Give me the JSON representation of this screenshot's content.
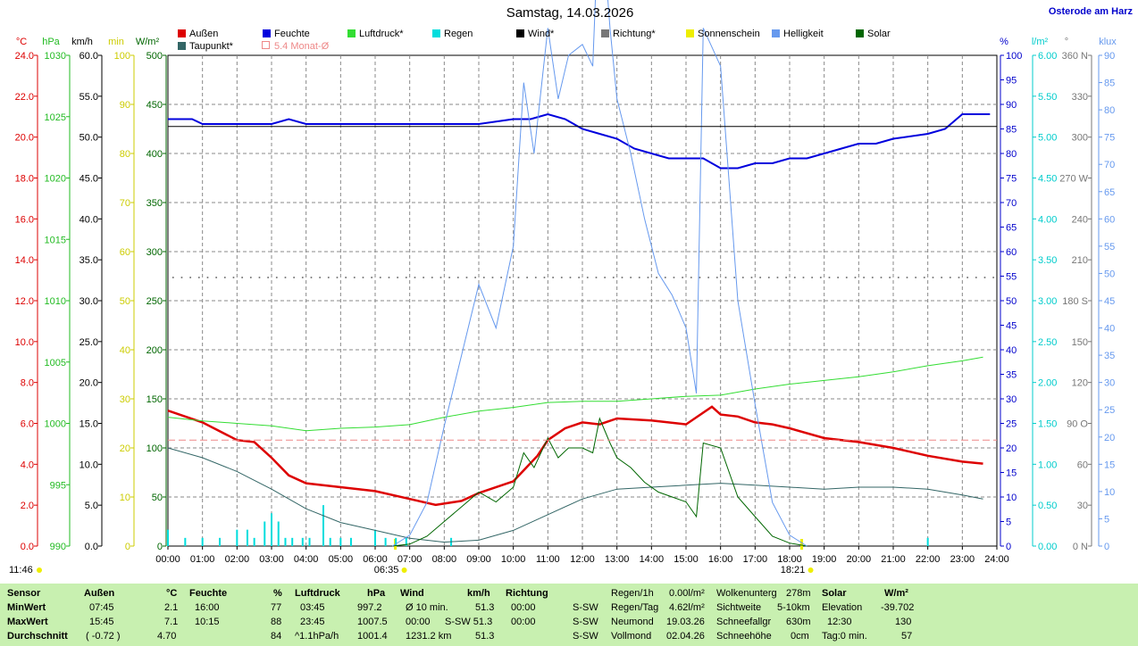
{
  "title": "Samstag, 14.03.2026",
  "location": "Osterode am Harz",
  "legend": [
    {
      "label": "Außen",
      "color": "#dd0000"
    },
    {
      "label": "Feuchte",
      "color": "#0000dd"
    },
    {
      "label": "Luftdruck*",
      "color": "#33dd33"
    },
    {
      "label": "Regen",
      "color": "#00dddd"
    },
    {
      "label": "Wind*",
      "color": "#000000"
    },
    {
      "label": "Richtung*",
      "color": "#777777"
    },
    {
      "label": "Sonnenschein",
      "color": "#eeee00"
    },
    {
      "label": "Helligkeit",
      "color": "#6699ee"
    },
    {
      "label": "Solar",
      "color": "#006600"
    },
    {
      "label": "Taupunkt*",
      "color": "#336666"
    },
    {
      "label": "5.4 Monat-Ø",
      "color": "#ee8888"
    }
  ],
  "axis_units": {
    "temp": "°C",
    "hpa": "hPa",
    "kmh": "km/h",
    "min": "min",
    "wm2": "W/m²",
    "pct": "%",
    "lm2": "l/m²",
    "deg": "°",
    "klux": "klux"
  },
  "axes": {
    "temp": [
      "24.0",
      "22.0",
      "20.0",
      "18.0",
      "16.0",
      "14.0",
      "12.0",
      "10.0",
      "8.0",
      "6.0",
      "4.0",
      "2.0",
      "0.0"
    ],
    "hpa": [
      "1030",
      "1025",
      "1020",
      "1015",
      "1010",
      "1005",
      "1000",
      "995",
      "990"
    ],
    "kmh": [
      "60.0",
      "55.0",
      "50.0",
      "45.0",
      "40.0",
      "35.0",
      "30.0",
      "25.0",
      "20.0",
      "15.0",
      "10.0",
      "5.0",
      "0.0"
    ],
    "min": [
      "100",
      "90",
      "80",
      "70",
      "60",
      "50",
      "40",
      "30",
      "20",
      "10",
      "0"
    ],
    "wm2": [
      "500",
      "450",
      "400",
      "350",
      "300",
      "250",
      "200",
      "150",
      "100",
      "50",
      "0"
    ],
    "pct": [
      "100",
      "95",
      "90",
      "85",
      "80",
      "75",
      "70",
      "65",
      "60",
      "55",
      "50",
      "45",
      "40",
      "35",
      "30",
      "25",
      "20",
      "15",
      "10",
      "5",
      "0"
    ],
    "lm2": [
      "6.00",
      "5.50",
      "5.00",
      "4.50",
      "4.00",
      "3.50",
      "3.00",
      "2.50",
      "2.00",
      "1.50",
      "1.00",
      "0.50",
      "0.00"
    ],
    "deg": [
      "360 N",
      "330",
      "300",
      "270 W",
      "240",
      "210",
      "180 S",
      "150",
      "120",
      "90 O",
      "60",
      "30",
      "0 N"
    ],
    "klux": [
      "90",
      "85",
      "80",
      "75",
      "70",
      "65",
      "60",
      "55",
      "50",
      "45",
      "40",
      "35",
      "30",
      "25",
      "20",
      "15",
      "10",
      "5",
      "0"
    ]
  },
  "sunrise": "06:35",
  "sunset": "18:21",
  "now": "11:46",
  "chart_data": {
    "type": "line",
    "title": "Samstag, 14.03.2026",
    "x_ticks": [
      "00:00",
      "01:00",
      "02:00",
      "03:00",
      "04:00",
      "05:00",
      "06:00",
      "07:00",
      "08:00",
      "09:00",
      "10:00",
      "11:00",
      "12:00",
      "13:00",
      "14:00",
      "15:00",
      "16:00",
      "17:00",
      "18:00",
      "19:00",
      "20:00",
      "21:00",
      "22:00",
      "23:00",
      "24:00"
    ],
    "series": [
      {
        "name": "Außen",
        "unit": "°C",
        "color": "#dd0000",
        "t": [
          0,
          1,
          2,
          2.5,
          3,
          3.5,
          4,
          5,
          6,
          7,
          7.75,
          8.5,
          9,
          10,
          10.7,
          11,
          11.5,
          12,
          12.5,
          13,
          14,
          15,
          15.75,
          16,
          16.5,
          17,
          17.5,
          18,
          19,
          20,
          21,
          22,
          23,
          23.6
        ],
        "v": [
          6.9,
          6.3,
          5.4,
          5.3,
          4.5,
          3.6,
          3.2,
          3.0,
          2.8,
          2.4,
          2.1,
          2.3,
          2.7,
          3.3,
          4.6,
          5.4,
          6.0,
          6.3,
          6.2,
          6.5,
          6.4,
          6.2,
          7.1,
          6.7,
          6.6,
          6.3,
          6.2,
          6.0,
          5.5,
          5.3,
          5.0,
          4.6,
          4.3,
          4.2
        ]
      },
      {
        "name": "Taupunkt*",
        "unit": "°C",
        "color": "#336666",
        "t": [
          0,
          1,
          2,
          3,
          4,
          5,
          6,
          7,
          8,
          9,
          10,
          11,
          12,
          13,
          14,
          15,
          16,
          17,
          18,
          19,
          20,
          21,
          22,
          23,
          23.6
        ],
        "v": [
          5.0,
          4.5,
          3.8,
          2.9,
          1.9,
          1.2,
          0.8,
          0.4,
          0.2,
          0.3,
          0.8,
          1.6,
          2.4,
          2.9,
          3.0,
          3.1,
          3.2,
          3.1,
          3.0,
          2.9,
          3.0,
          3.0,
          2.9,
          2.6,
          2.4
        ]
      },
      {
        "name": "Luftdruck*",
        "unit": "hPa",
        "color": "#33dd33",
        "t": [
          0,
          1,
          2,
          3,
          4,
          5,
          6,
          7,
          8,
          9,
          10,
          11,
          12,
          13,
          14,
          15,
          16,
          17,
          18,
          19,
          20,
          21,
          22,
          23,
          23.6
        ],
        "v": [
          1000.5,
          1000.2,
          1000.0,
          999.8,
          999.4,
          999.6,
          999.7,
          999.9,
          1000.5,
          1001.0,
          1001.3,
          1001.7,
          1001.8,
          1001.8,
          1002.0,
          1002.2,
          1002.3,
          1002.8,
          1003.2,
          1003.5,
          1003.8,
          1004.2,
          1004.7,
          1005.1,
          1005.4
        ]
      },
      {
        "name": "Feuchte",
        "unit": "%",
        "color": "#0000dd",
        "t": [
          0,
          0.7,
          1,
          1.5,
          2,
          3,
          3.5,
          4,
          5,
          6,
          7,
          8,
          9,
          10,
          10.5,
          11,
          11.5,
          12,
          12.5,
          13,
          13.5,
          14,
          14.5,
          15,
          15.5,
          16,
          16.5,
          17,
          17.5,
          18,
          18.5,
          19,
          19.5,
          20,
          20.5,
          21,
          22,
          22.5,
          23,
          23.8
        ],
        "v": [
          87,
          87,
          86,
          86,
          86,
          86,
          87,
          86,
          86,
          86,
          86,
          86,
          86,
          87,
          87,
          88,
          87,
          85,
          84,
          83,
          81,
          80,
          79,
          79,
          79,
          77,
          77,
          78,
          78,
          79,
          79,
          80,
          81,
          82,
          82,
          83,
          84,
          85,
          88,
          88
        ]
      },
      {
        "name": "Solar",
        "unit": "W/m²",
        "color": "#006600",
        "t": [
          6.5,
          7,
          7.5,
          8,
          8.5,
          9,
          9.5,
          10,
          10.3,
          10.6,
          11,
          11.3,
          11.6,
          12,
          12.3,
          12.5,
          12.8,
          13,
          13.4,
          13.8,
          14.2,
          14.6,
          15,
          15.3,
          15.5,
          16,
          16.5,
          17,
          17.5,
          18,
          18.5
        ],
        "v": [
          0,
          2,
          10,
          25,
          40,
          55,
          45,
          60,
          95,
          80,
          110,
          90,
          100,
          100,
          95,
          130,
          105,
          90,
          80,
          65,
          55,
          50,
          45,
          30,
          105,
          100,
          50,
          30,
          10,
          3,
          0
        ]
      },
      {
        "name": "Helligkeit",
        "unit": "klux",
        "color": "#6699ee",
        "t": [
          6.5,
          7,
          7.5,
          8,
          8.5,
          9,
          9.5,
          10,
          10.3,
          10.6,
          11,
          11.3,
          11.6,
          12,
          12.3,
          12.5,
          12.8,
          13,
          13.4,
          13.8,
          14.2,
          14.6,
          15,
          15.3,
          15.5,
          16,
          16.5,
          17,
          17.5,
          18,
          18.5
        ],
        "v": [
          0,
          2,
          8,
          22,
          35,
          48,
          40,
          55,
          85,
          72,
          95,
          82,
          90,
          92,
          88,
          120,
          95,
          82,
          72,
          60,
          50,
          46,
          40,
          28,
          95,
          88,
          45,
          26,
          8,
          2,
          0
        ]
      },
      {
        "name": "Wind*",
        "unit": "km/h",
        "color": "#000000",
        "t": [
          0,
          24
        ],
        "v": [
          51.3,
          51.3
        ]
      },
      {
        "name": "Richtung*",
        "unit": "°",
        "color": "#777777",
        "t": [
          0,
          24
        ],
        "v": [
          197,
          197
        ]
      },
      {
        "name": "5.4 Monat-Ø",
        "unit": "°C",
        "color": "#ee8888",
        "t": [
          0,
          24
        ],
        "v": [
          5.4,
          5.4
        ]
      },
      {
        "name": "Regen",
        "unit": "l/m²",
        "color": "#00dddd",
        "t": [
          0,
          0.5,
          1,
          1.5,
          2,
          2.3,
          2.5,
          2.8,
          3,
          3.2,
          3.4,
          3.6,
          3.9,
          4.1,
          4.5,
          4.7,
          5,
          5.3,
          6,
          6.3,
          6.6,
          6.9,
          8.2,
          22
        ],
        "v": [
          0.2,
          0.1,
          0.1,
          0.1,
          0.2,
          0.2,
          0.1,
          0.3,
          0.4,
          0.3,
          0.1,
          0.1,
          0.1,
          0.1,
          0.5,
          0.1,
          0.1,
          0.1,
          0.2,
          0.1,
          0.1,
          0.1,
          0.1,
          0.1
        ]
      }
    ]
  },
  "stats": {
    "sensor": "Sensor",
    "minwert": "MinWert",
    "maxwert": "MaxWert",
    "durchschnitt": "Durchschnitt",
    "aussen": {
      "h": "Außen",
      "u": "°C",
      "min_t": "07:45",
      "min_v": "2.1",
      "max_t": "15:45",
      "max_v": "7.1",
      "avg_t": "( -0.72 )",
      "avg_v": "4.70"
    },
    "feuchte": {
      "h": "Feuchte",
      "u": "%",
      "min_t": "16:00",
      "min_v": "77",
      "max_t": "10:15",
      "max_v": "88",
      "avg_v": "84"
    },
    "luftdruck": {
      "h": "Luftdruck",
      "u": "hPa",
      "min_t": "03:45",
      "min_v": "997.2",
      "max_t": "23:45",
      "max_v": "1007.5",
      "avg_t": "^1.1hPa/h",
      "avg_v": "1001.4"
    },
    "wind": {
      "h": "Wind",
      "u": "km/h",
      "r1a": "Ø 10 min.",
      "r1b": "51.3",
      "r2a": "00:00",
      "r2b": "S-SW 51.3",
      "r3a": "1231.2 km",
      "r3b": "51.3"
    },
    "richtung": {
      "h": "Richtung",
      "r1a": "00:00",
      "r1b": "S-SW",
      "r2a": "00:00",
      "r2b": "S-SW",
      "r3b": "S-SW"
    },
    "regen": {
      "r0a": "Regen/1h",
      "r0b": "0.00l/m²",
      "r1a": "Regen/Tag",
      "r1b": "4.62l/m²",
      "r2a": "Neumond",
      "r2b": "19.03.26",
      "r3a": "Vollmond",
      "r3b": "02.04.26"
    },
    "wolken": {
      "r0a": "Wolkenunterg",
      "r0b": "278m",
      "r1a": "Sichtweite",
      "r1b": "5-10km",
      "r2a": "Schneefallgr",
      "r2b": "630m",
      "r3a": "Schneehöhe",
      "r3b": "0cm"
    },
    "solar": {
      "h": "Solar",
      "u": "W/m²",
      "r1a": "Elevation",
      "r1b": "-39.702",
      "r2a": "12:30",
      "r2b": "130",
      "r3a": "Tag:0 min.",
      "r3b": "57"
    }
  }
}
